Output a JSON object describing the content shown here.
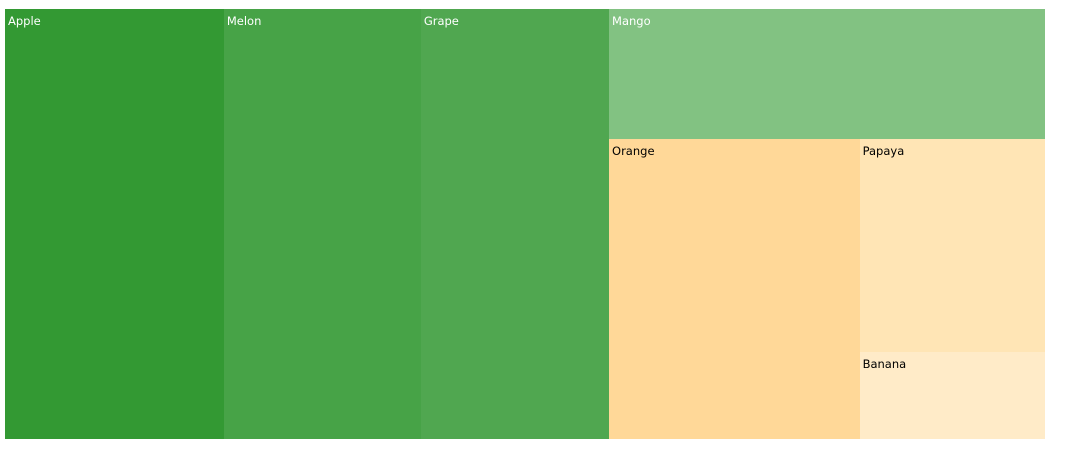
{
  "chart_data": {
    "type": "treemap",
    "title": "",
    "items": [
      {
        "name": "Apple",
        "value": 250,
        "color": "#339933",
        "label_color": "#ffffff"
      },
      {
        "name": "Melon",
        "value": 225,
        "color": "#47a347",
        "label_color": "#ffffff"
      },
      {
        "name": "Grape",
        "value": 215,
        "color": "#50a750",
        "label_color": "#ffffff"
      },
      {
        "name": "Mango",
        "value": 150,
        "color": "#82c282",
        "label_color": "#ffffff"
      },
      {
        "name": "Orange",
        "value": 200,
        "color": "#ffd898",
        "label_color": "#000000"
      },
      {
        "name": "Papaya",
        "value": 105,
        "color": "#ffe5b5",
        "label_color": "#000000"
      },
      {
        "name": "Banana",
        "value": 43,
        "color": "#ffebc8",
        "label_color": "#000000"
      }
    ]
  }
}
